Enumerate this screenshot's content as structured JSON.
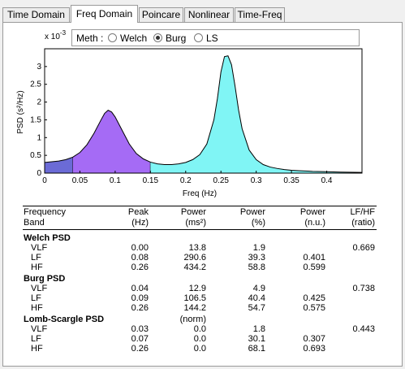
{
  "tabs": [
    "Time Domain",
    "Freq Domain",
    "Poincare",
    "Nonlinear",
    "Time-Freq"
  ],
  "active_tab": "Freq Domain",
  "method": {
    "label": "Meth :",
    "options": [
      "Welch",
      "Burg",
      "LS"
    ],
    "selected": "Burg"
  },
  "chart_data": {
    "type": "area",
    "title": "",
    "xlabel": "Freq (Hz)",
    "ylabel": "PSD (s²/Hz)",
    "y_multiplier": "x 10",
    "y_exponent": "-3",
    "xlim": [
      0,
      0.45
    ],
    "ylim": [
      0,
      0.0035
    ],
    "x_ticks": [
      "0",
      "0.05",
      "0.1",
      "0.15",
      "0.2",
      "0.25",
      "0.3",
      "0.35",
      "0.4"
    ],
    "y_ticks": [
      "0",
      "0.5",
      "1",
      "1.5",
      "2",
      "2.5",
      "3"
    ],
    "bands": [
      {
        "name": "VLF",
        "range": [
          0,
          0.04
        ],
        "color": "#6b6bd6"
      },
      {
        "name": "LF",
        "range": [
          0.04,
          0.15
        ],
        "color": "#a56bf5"
      },
      {
        "name": "HF",
        "range": [
          0.15,
          0.45
        ],
        "color": "#80f5f5"
      }
    ],
    "x": [
      0,
      0.01,
      0.02,
      0.03,
      0.04,
      0.05,
      0.06,
      0.07,
      0.08,
      0.085,
      0.09,
      0.095,
      0.1,
      0.11,
      0.12,
      0.13,
      0.14,
      0.15,
      0.16,
      0.17,
      0.18,
      0.19,
      0.2,
      0.21,
      0.22,
      0.23,
      0.24,
      0.245,
      0.25,
      0.255,
      0.26,
      0.265,
      0.27,
      0.275,
      0.28,
      0.29,
      0.3,
      0.31,
      0.32,
      0.33,
      0.34,
      0.35,
      0.36,
      0.38,
      0.4,
      0.42,
      0.45
    ],
    "y": [
      0.0003,
      0.00032,
      0.00034,
      0.00038,
      0.00045,
      0.00058,
      0.0008,
      0.00112,
      0.0015,
      0.00168,
      0.00177,
      0.00172,
      0.00158,
      0.0012,
      0.00082,
      0.00055,
      0.0004,
      0.00031,
      0.00026,
      0.00024,
      0.00024,
      0.00026,
      0.0003,
      0.00038,
      0.00052,
      0.00082,
      0.0015,
      0.0021,
      0.00285,
      0.00328,
      0.0033,
      0.00305,
      0.00245,
      0.00178,
      0.00125,
      0.00065,
      0.00038,
      0.00024,
      0.00017,
      0.00013,
      0.0001,
      8e-05,
      7e-05,
      5e-05,
      4e-05,
      3e-05,
      2e-05
    ]
  },
  "table": {
    "headers": [
      [
        "Frequency",
        "Band"
      ],
      [
        "Peak",
        "(Hz)"
      ],
      [
        "Power",
        "(ms²)"
      ],
      [
        "Power",
        "(%)"
      ],
      [
        "Power",
        "(n.u.)"
      ],
      [
        "LF/HF",
        "(ratio)"
      ]
    ],
    "sections": [
      {
        "title": "Welch PSD",
        "rows": [
          {
            "band": "VLF",
            "peak": "0.00",
            "power_ms2": "13.8",
            "power_pct": "1.9",
            "power_nu": "",
            "ratio": "0.669"
          },
          {
            "band": "LF",
            "peak": "0.08",
            "power_ms2": "290.6",
            "power_pct": "39.3",
            "power_nu": "0.401",
            "ratio": ""
          },
          {
            "band": "HF",
            "peak": "0.26",
            "power_ms2": "434.2",
            "power_pct": "58.8",
            "power_nu": "0.599",
            "ratio": ""
          }
        ]
      },
      {
        "title": "Burg PSD",
        "rows": [
          {
            "band": "VLF",
            "peak": "0.04",
            "power_ms2": "12.9",
            "power_pct": "4.9",
            "power_nu": "",
            "ratio": "0.738"
          },
          {
            "band": "LF",
            "peak": "0.09",
            "power_ms2": "106.5",
            "power_pct": "40.4",
            "power_nu": "0.425",
            "ratio": ""
          },
          {
            "band": "HF",
            "peak": "0.26",
            "power_ms2": "144.2",
            "power_pct": "54.7",
            "power_nu": "0.575",
            "ratio": ""
          }
        ]
      },
      {
        "title": "Lomb-Scargle PSD",
        "subtitle": "(norm)",
        "rows": [
          {
            "band": "VLF",
            "peak": "0.03",
            "power_ms2": "0.0",
            "power_pct": "1.8",
            "power_nu": "",
            "ratio": "0.443"
          },
          {
            "band": "LF",
            "peak": "0.07",
            "power_ms2": "0.0",
            "power_pct": "30.1",
            "power_nu": "0.307",
            "ratio": ""
          },
          {
            "band": "HF",
            "peak": "0.26",
            "power_ms2": "0.0",
            "power_pct": "68.1",
            "power_nu": "0.693",
            "ratio": ""
          }
        ]
      }
    ]
  }
}
